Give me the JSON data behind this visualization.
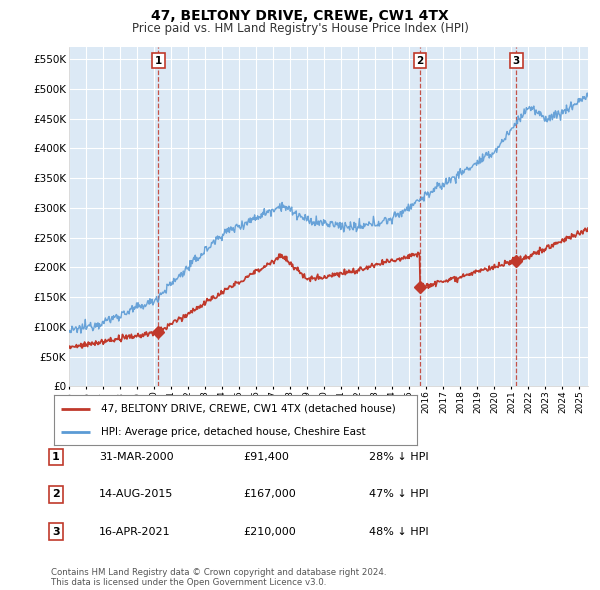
{
  "title": "47, BELTONY DRIVE, CREWE, CW1 4TX",
  "subtitle": "Price paid vs. HM Land Registry's House Price Index (HPI)",
  "ylim": [
    0,
    570000
  ],
  "yticks": [
    0,
    50000,
    100000,
    150000,
    200000,
    250000,
    300000,
    350000,
    400000,
    450000,
    500000,
    550000
  ],
  "ytick_labels": [
    "£0",
    "£50K",
    "£100K",
    "£150K",
    "£200K",
    "£250K",
    "£300K",
    "£350K",
    "£400K",
    "£450K",
    "£500K",
    "£550K"
  ],
  "background_color": "#ffffff",
  "plot_bg_color": "#dce9f5",
  "grid_color": "#ffffff",
  "hpi_color": "#5b9bd5",
  "price_color": "#c0392b",
  "sale_line_color": "#c0392b",
  "transactions": [
    {
      "date_num": 2000.25,
      "price": 91400,
      "label": "1"
    },
    {
      "date_num": 2015.62,
      "price": 167000,
      "label": "2"
    },
    {
      "date_num": 2021.29,
      "price": 210000,
      "label": "3"
    }
  ],
  "legend_entries": [
    {
      "label": "47, BELTONY DRIVE, CREWE, CW1 4TX (detached house)",
      "color": "#c0392b"
    },
    {
      "label": "HPI: Average price, detached house, Cheshire East",
      "color": "#5b9bd5"
    }
  ],
  "table_rows": [
    {
      "num": "1",
      "date": "31-MAR-2000",
      "price": "£91,400",
      "hpi": "28% ↓ HPI"
    },
    {
      "num": "2",
      "date": "14-AUG-2015",
      "price": "£167,000",
      "hpi": "47% ↓ HPI"
    },
    {
      "num": "3",
      "date": "16-APR-2021",
      "price": "£210,000",
      "hpi": "48% ↓ HPI"
    }
  ],
  "footnote": "Contains HM Land Registry data © Crown copyright and database right 2024.\nThis data is licensed under the Open Government Licence v3.0.",
  "x_start": 1995,
  "x_end": 2025.5,
  "xtick_years": [
    1995,
    1996,
    1997,
    1998,
    1999,
    2000,
    2001,
    2002,
    2003,
    2004,
    2005,
    2006,
    2007,
    2008,
    2009,
    2010,
    2011,
    2012,
    2013,
    2014,
    2015,
    2016,
    2017,
    2018,
    2019,
    2020,
    2021,
    2022,
    2023,
    2024,
    2025
  ]
}
